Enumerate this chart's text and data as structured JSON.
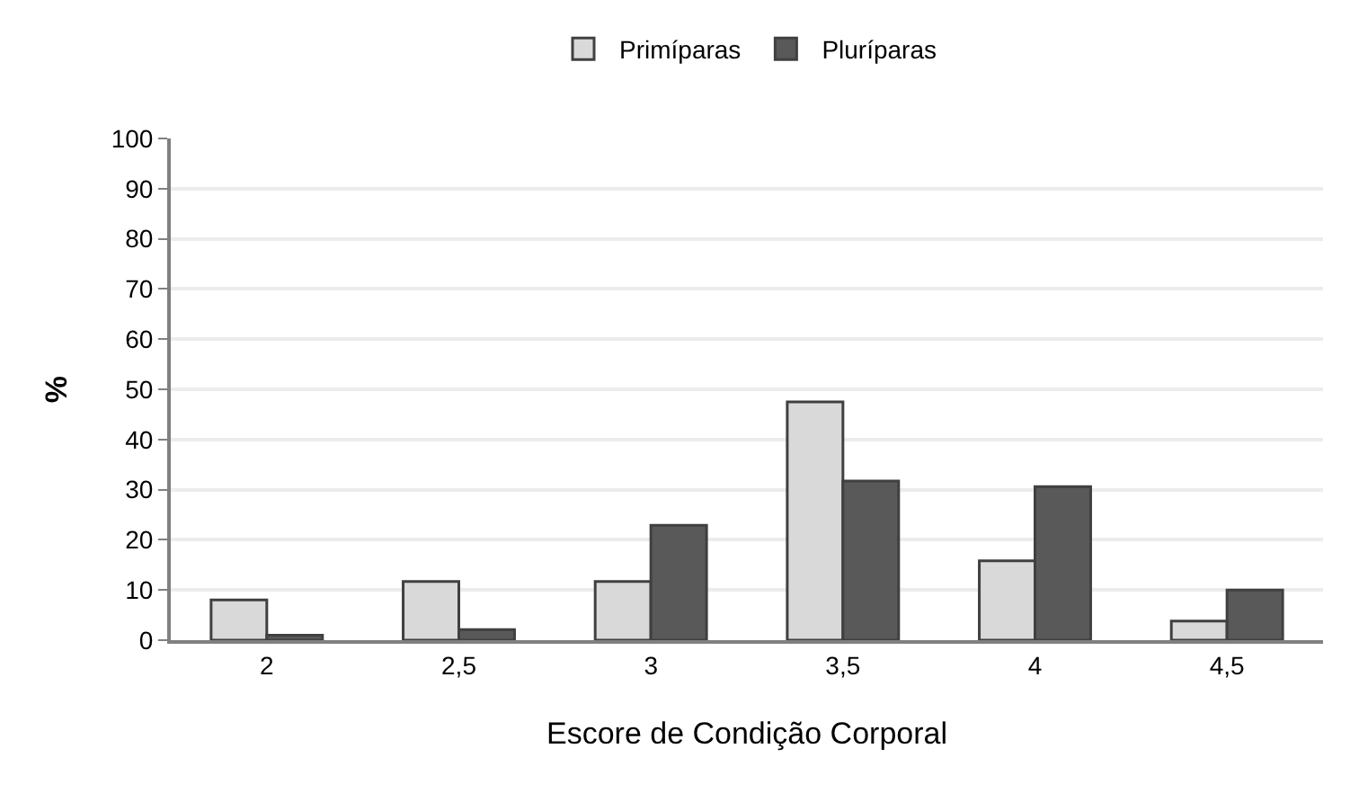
{
  "chart_data": {
    "type": "bar",
    "xlabel": "Escore de Condição Corporal",
    "ylabel": "%",
    "categories": [
      "2",
      "2,5",
      "3",
      "3,5",
      "4",
      "4,5"
    ],
    "series": [
      {
        "name": "Primíparas",
        "color": "#d9d9d9",
        "values": [
          8,
          11.7,
          11.7,
          47.5,
          15.8,
          3.8
        ]
      },
      {
        "name": "Pluríparas",
        "color": "#595959",
        "values": [
          1,
          2.1,
          22.9,
          31.7,
          30.6,
          10
        ]
      }
    ],
    "ylim": [
      0,
      100
    ],
    "yticks": [
      0,
      10,
      20,
      30,
      40,
      50,
      60,
      70,
      80,
      90,
      100
    ],
    "grid": "y",
    "legend": "top"
  }
}
